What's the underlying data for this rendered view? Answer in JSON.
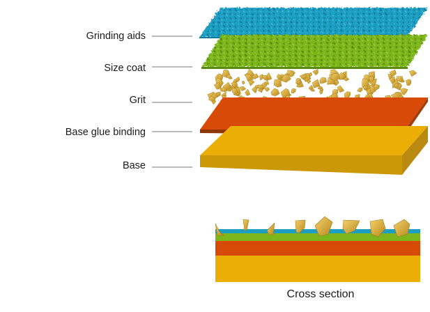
{
  "labels": {
    "grinding_aids": "Grinding aids",
    "size_coat": "Size coat",
    "grit": "Grit",
    "base_glue": "Base glue binding",
    "base": "Base"
  },
  "caption": "Cross section",
  "colors": {
    "grinding_aids": "#1e9fc2",
    "size_coat": "#7db51d",
    "grit": "#e3b63e",
    "base_glue": "#d84a07",
    "base": "#eaae05",
    "leader_line": "#777777"
  }
}
